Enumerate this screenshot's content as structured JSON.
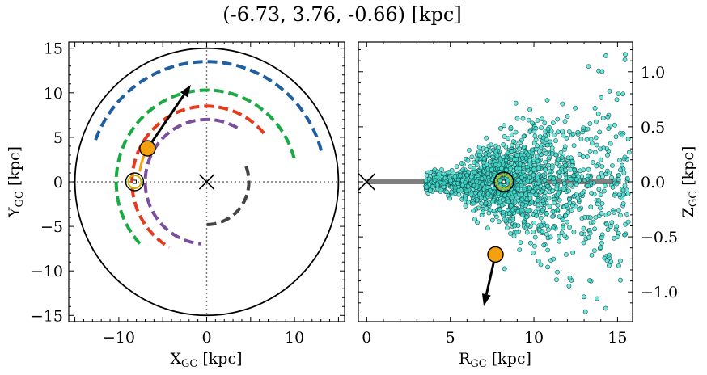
{
  "title": "(-6.73, 3.76, -0.66) [kpc]",
  "chart_data": [
    {
      "type": "scatter",
      "panel": "left",
      "xlabel_main": "X",
      "xlabel_sub": "GC",
      "xlabel_unit": " [kpc]",
      "ylabel_main": "Y",
      "ylabel_sub": "GC",
      "ylabel_unit": " [kpc]",
      "xlim": [
        -15.7,
        15.7
      ],
      "ylim": [
        -15.7,
        15.7
      ],
      "xticks": [
        -10,
        0,
        10
      ],
      "yticks": [
        -15,
        -10,
        -5,
        0,
        5,
        10,
        15
      ],
      "xtick_labels": [
        "−10",
        "0",
        "10"
      ],
      "ytick_labels": [
        "−15",
        "−10",
        "−5",
        "0",
        "5",
        "10",
        "15"
      ],
      "boundary_circle_radius": 15,
      "galactic_center": [
        0,
        0
      ],
      "sun": [
        -8.2,
        0
      ],
      "object": [
        -6.73,
        3.76
      ],
      "velocity_arrow_end": [
        -1.8,
        10.9
      ],
      "spiral_arms": [
        {
          "color": "#1f5fa0",
          "r": 13.5,
          "angle_start": 15,
          "angle_end": 160
        },
        {
          "color": "#1aaa44",
          "r": 10.3,
          "angle_start": 15,
          "angle_end": 225
        },
        {
          "color": "#e8391c",
          "r": 8.5,
          "angle_start": 40,
          "angle_end": 240
        },
        {
          "color": "#7b4f9e",
          "r": 7.0,
          "angle_start": 60,
          "angle_end": 265
        },
        {
          "color": "#444444",
          "r": 4.8,
          "angle_start": -90,
          "angle_end": 25
        }
      ]
    },
    {
      "type": "scatter",
      "panel": "right",
      "xlabel_main": "R",
      "xlabel_sub": "GC",
      "xlabel_unit": " [kpc]",
      "ylabel_main": "Z",
      "ylabel_sub": "GC",
      "ylabel_unit": " [kpc]",
      "xlim": [
        -0.5,
        15.9
      ],
      "ylim": [
        -1.27,
        1.27
      ],
      "xticks": [
        0,
        5,
        10,
        15
      ],
      "yticks": [
        -1.0,
        -0.5,
        0.0,
        0.5,
        1.0
      ],
      "xtick_labels": [
        "0",
        "5",
        "10",
        "15"
      ],
      "ytick_labels": [
        "−1.0",
        "−0.5",
        "0.0",
        "0.5",
        "1.0"
      ],
      "galactic_center": [
        0,
        0
      ],
      "sun": [
        8.2,
        0
      ],
      "object": [
        7.7,
        -0.66
      ],
      "velocity_arrow_end": [
        7.0,
        -1.13
      ],
      "disk_line": {
        "x": [
          0,
          15.2
        ],
        "y": 0,
        "color": "#808080"
      },
      "stars_color": "#40e0d0",
      "stars_count": 1600
    }
  ],
  "colors": {
    "object": "#f5a00f",
    "sun_ring": "#c8b400",
    "circle": "#000000"
  }
}
